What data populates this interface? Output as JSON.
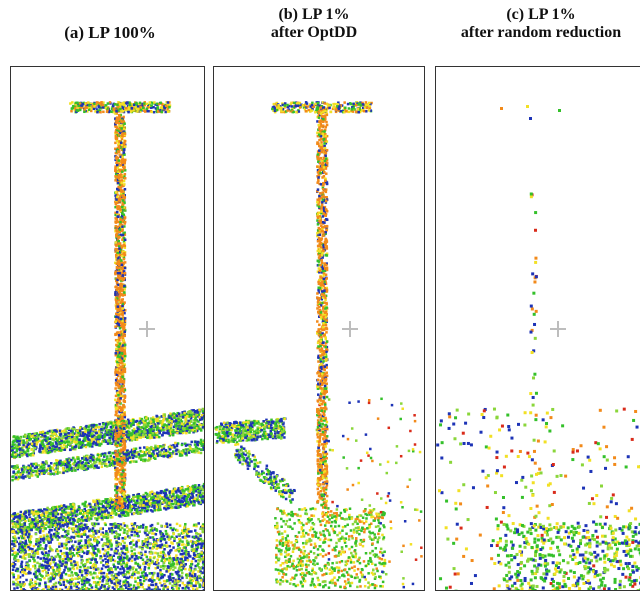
{
  "panels": [
    {
      "id": "a",
      "caption_line1": "(a) LP 100%",
      "caption_line2": ""
    },
    {
      "id": "b",
      "caption_line1": "(b) LP 1%",
      "caption_line2": "after OptDD"
    },
    {
      "id": "c",
      "caption_line1": "(c) LP 1%",
      "caption_line2": "after random  reduction"
    }
  ],
  "colors": {
    "point_orange": "#f28a1a",
    "point_yellow": "#f2e024",
    "point_green": "#34c02a",
    "point_lightgreen": "#8ad63a",
    "point_blue": "#1d33b6",
    "point_red": "#d92b1a",
    "frame": "#333333",
    "crosshair": "#bdbdbd"
  },
  "icons": [
    "crosshair-icon"
  ]
}
